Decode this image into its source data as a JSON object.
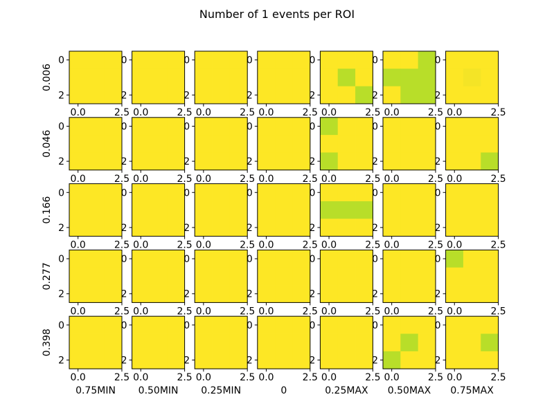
{
  "chart_data": {
    "type": "heatmap",
    "title": "Number of 1 events per ROI",
    "row_labels": [
      "0.006",
      "0.046",
      "0.166",
      "0.277",
      "0.398"
    ],
    "column_labels": [
      "0.75MIN",
      "0.50MIN",
      "0.25MIN",
      "0",
      "0.25MAX",
      "0.50MAX",
      "0.75MAX"
    ],
    "x_tick_labels": [
      "0.0",
      "2.5"
    ],
    "y_tick_labels": [
      "0",
      "2"
    ],
    "colors": {
      "high": "#fde725",
      "low": "#b8de29",
      "mid": "#f4e426"
    },
    "cell_values": [
      [
        [
          [
            1,
            1,
            1
          ],
          [
            1,
            1,
            1
          ],
          [
            1,
            1,
            1
          ]
        ],
        [
          [
            1,
            1,
            1
          ],
          [
            1,
            1,
            1
          ],
          [
            1,
            1,
            1
          ]
        ],
        [
          [
            1,
            1,
            1
          ],
          [
            1,
            1,
            1
          ],
          [
            1,
            1,
            1
          ]
        ],
        [
          [
            1,
            1,
            1
          ],
          [
            1,
            1,
            1
          ],
          [
            1,
            1,
            1
          ]
        ],
        [
          [
            1,
            1,
            1
          ],
          [
            1,
            0,
            1
          ],
          [
            1,
            1,
            0
          ]
        ],
        [
          [
            1,
            1,
            0
          ],
          [
            0,
            0,
            0
          ],
          [
            1,
            0,
            0
          ]
        ],
        [
          [
            1,
            1,
            1
          ],
          [
            1,
            0.5,
            1
          ],
          [
            1,
            1,
            1
          ]
        ]
      ],
      [
        [
          [
            1,
            1,
            1
          ],
          [
            1,
            1,
            1
          ],
          [
            1,
            1,
            1
          ]
        ],
        [
          [
            1,
            1,
            1
          ],
          [
            1,
            1,
            1
          ],
          [
            1,
            1,
            1
          ]
        ],
        [
          [
            1,
            1,
            1
          ],
          [
            1,
            1,
            1
          ],
          [
            1,
            1,
            1
          ]
        ],
        [
          [
            1,
            1,
            1
          ],
          [
            1,
            1,
            1
          ],
          [
            1,
            1,
            1
          ]
        ],
        [
          [
            0,
            1,
            1
          ],
          [
            1,
            1,
            1
          ],
          [
            0,
            1,
            1
          ]
        ],
        [
          [
            1,
            1,
            1
          ],
          [
            1,
            1,
            1
          ],
          [
            1,
            1,
            1
          ]
        ],
        [
          [
            1,
            1,
            1
          ],
          [
            1,
            1,
            1
          ],
          [
            1,
            1,
            0
          ]
        ]
      ],
      [
        [
          [
            1,
            1,
            1
          ],
          [
            1,
            1,
            1
          ],
          [
            1,
            1,
            1
          ]
        ],
        [
          [
            1,
            1,
            1
          ],
          [
            1,
            1,
            1
          ],
          [
            1,
            1,
            1
          ]
        ],
        [
          [
            1,
            1,
            1
          ],
          [
            1,
            1,
            1
          ],
          [
            1,
            1,
            1
          ]
        ],
        [
          [
            1,
            1,
            1
          ],
          [
            1,
            1,
            1
          ],
          [
            1,
            1,
            1
          ]
        ],
        [
          [
            1,
            1,
            1
          ],
          [
            0,
            0,
            0
          ],
          [
            1,
            1,
            1
          ]
        ],
        [
          [
            1,
            1,
            1
          ],
          [
            1,
            1,
            1
          ],
          [
            1,
            1,
            1
          ]
        ],
        [
          [
            1,
            1,
            1
          ],
          [
            1,
            1,
            1
          ],
          [
            1,
            1,
            1
          ]
        ]
      ],
      [
        [
          [
            1,
            1,
            1
          ],
          [
            1,
            1,
            1
          ],
          [
            1,
            1,
            1
          ]
        ],
        [
          [
            1,
            1,
            1
          ],
          [
            1,
            1,
            1
          ],
          [
            1,
            1,
            1
          ]
        ],
        [
          [
            1,
            1,
            1
          ],
          [
            1,
            1,
            1
          ],
          [
            1,
            1,
            1
          ]
        ],
        [
          [
            1,
            1,
            1
          ],
          [
            1,
            1,
            1
          ],
          [
            1,
            1,
            1
          ]
        ],
        [
          [
            1,
            1,
            1
          ],
          [
            1,
            1,
            1
          ],
          [
            1,
            1,
            1
          ]
        ],
        [
          [
            1,
            1,
            1
          ],
          [
            1,
            1,
            1
          ],
          [
            1,
            1,
            1
          ]
        ],
        [
          [
            0,
            1,
            1
          ],
          [
            1,
            1,
            1
          ],
          [
            1,
            1,
            1
          ]
        ]
      ],
      [
        [
          [
            1,
            1,
            1
          ],
          [
            1,
            1,
            1
          ],
          [
            1,
            1,
            1
          ]
        ],
        [
          [
            1,
            1,
            1
          ],
          [
            1,
            1,
            1
          ],
          [
            1,
            1,
            1
          ]
        ],
        [
          [
            1,
            1,
            1
          ],
          [
            1,
            1,
            1
          ],
          [
            1,
            1,
            1
          ]
        ],
        [
          [
            1,
            1,
            1
          ],
          [
            1,
            1,
            1
          ],
          [
            1,
            1,
            1
          ]
        ],
        [
          [
            1,
            1,
            1
          ],
          [
            1,
            1,
            1
          ],
          [
            1,
            1,
            1
          ]
        ],
        [
          [
            1,
            1,
            1
          ],
          [
            1,
            0,
            1
          ],
          [
            0,
            1,
            1
          ]
        ],
        [
          [
            1,
            1,
            1
          ],
          [
            1,
            1,
            0
          ],
          [
            1,
            1,
            1
          ]
        ]
      ]
    ]
  }
}
